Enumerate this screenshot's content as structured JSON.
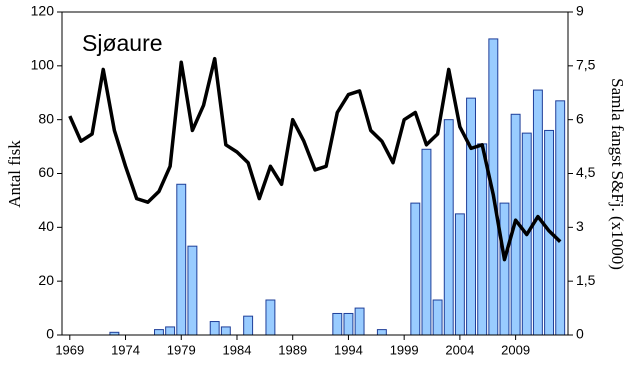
{
  "chart_data": {
    "type": "bar",
    "annotation": "Sjøaure",
    "y_label": "Antal fisk",
    "y2_label": "Samla fangst S&Fj. (x1000)",
    "x": [
      1969,
      1970,
      1971,
      1972,
      1973,
      1974,
      1975,
      1976,
      1977,
      1978,
      1979,
      1980,
      1981,
      1982,
      1983,
      1984,
      1985,
      1986,
      1987,
      1988,
      1989,
      1990,
      1991,
      1992,
      1993,
      1994,
      1995,
      1996,
      1997,
      1998,
      1999,
      2000,
      2001,
      2002,
      2003,
      2004,
      2005,
      2006,
      2007,
      2008,
      2009,
      2010,
      2011,
      2012,
      2013
    ],
    "series": [
      {
        "type": "bar",
        "color": "#99ccff",
        "values": [
          0,
          0,
          0,
          0,
          1,
          0,
          0,
          0,
          2,
          3,
          56,
          33,
          0,
          5,
          3,
          0,
          7,
          0,
          13,
          0,
          0,
          0,
          0,
          0,
          8,
          8,
          10,
          0,
          2,
          0,
          0,
          49,
          69,
          13,
          80,
          45,
          88,
          71,
          110,
          49,
          82,
          75,
          91,
          76,
          87
        ]
      },
      {
        "type": "line",
        "axis": "y2",
        "color": "#000000",
        "values": [
          6.1,
          5.4,
          5.6,
          7.4,
          5.7,
          4.7,
          3.8,
          3.7,
          4.0,
          4.7,
          7.6,
          5.7,
          6.4,
          7.7,
          5.3,
          5.1,
          4.8,
          3.8,
          4.7,
          4.2,
          6.0,
          5.4,
          4.6,
          4.7,
          6.2,
          6.7,
          6.8,
          5.7,
          5.4,
          4.8,
          6.0,
          6.2,
          5.3,
          5.6,
          7.4,
          5.8,
          5.2,
          5.3,
          3.9,
          2.1,
          3.2,
          2.8,
          3.3,
          2.9,
          2.6
        ]
      }
    ],
    "xlim": [
      1968.3,
      2013.7
    ],
    "xticks": [
      1969,
      1974,
      1979,
      1984,
      1989,
      1994,
      1999,
      2004,
      2009
    ],
    "ylim": [
      0,
      120
    ],
    "yticks": [
      0,
      20,
      40,
      60,
      80,
      100,
      120
    ],
    "y2lim": [
      0,
      9
    ],
    "y2ticks": [
      0,
      {
        "value": 1.5,
        "label": "1,5"
      },
      3,
      {
        "value": 4.5,
        "label": "4,5"
      },
      6,
      {
        "value": 7.5,
        "label": "7,5"
      },
      9
    ]
  }
}
